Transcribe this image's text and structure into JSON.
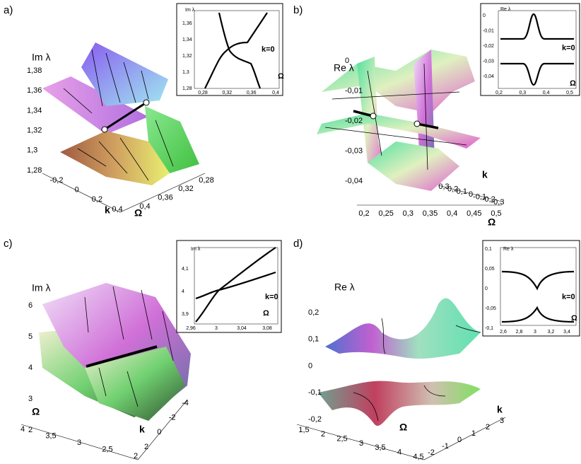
{
  "panels": [
    {
      "label": "a)",
      "main": {
        "zlabel": "Im λ",
        "zticks": [
          "1,38",
          "1,36",
          "1,34",
          "1,32",
          "1,3",
          "1,28"
        ],
        "klabel": "k",
        "kticks": [
          "-0,2",
          "0",
          "0,2",
          "0,4"
        ],
        "wlabel": "Ω",
        "wticks": [
          "0,4",
          "0,36",
          "0,32",
          "0,28"
        ]
      },
      "inset": {
        "ylabel": "Im λ",
        "yticks": [
          "1,36",
          "1,34",
          "1,32",
          "1,3",
          "1,28"
        ],
        "xticks": [
          "0,28",
          "0,32",
          "0,36",
          "0,4"
        ],
        "xlabel": "Ω",
        "note": "k=0"
      }
    },
    {
      "label": "b)",
      "main": {
        "zlabel": "Re λ",
        "zticks": [
          "0",
          "-0,01",
          "-0,02",
          "-0,03",
          "-0,04"
        ],
        "klabel": "k",
        "kticks": [
          "0,3",
          "0,2",
          "0,1",
          "0",
          "-0,1",
          "-0,2",
          "-0,3"
        ],
        "wlabel": "Ω",
        "wticks": [
          "0,2",
          "0,25",
          "0,3",
          "0,35",
          "0,4",
          "0,45",
          "0,5"
        ]
      },
      "inset": {
        "ylabel": "Re λ",
        "yticks": [
          "0",
          "-0,01",
          "-0,02",
          "-0,03",
          "-0,04"
        ],
        "xticks": [
          "0,2",
          "0,3",
          "0,4",
          "0,5"
        ],
        "xlabel": "Ω",
        "note": "k=0"
      }
    },
    {
      "label": "c)",
      "main": {
        "zlabel": "Im λ",
        "zticks": [
          "6",
          "5",
          "4",
          "3",
          "2"
        ],
        "klabel": "k",
        "kticks": [
          "2",
          "0",
          "-2",
          "-4"
        ],
        "wlabel": "Ω",
        "wticks": [
          "4",
          "3,5",
          "3",
          "2,5",
          "2"
        ]
      },
      "inset": {
        "ylabel": "Im λ",
        "yticks": [
          "4,1",
          "4",
          "3,9"
        ],
        "xticks": [
          "2,96",
          "3",
          "3,04",
          "3,08"
        ],
        "xlabel": "Ω",
        "note": "k=0"
      }
    },
    {
      "label": "d)",
      "main": {
        "zlabel": "Re λ",
        "zticks": [
          "0,2",
          "0,1",
          "0",
          "-0,1",
          "-0,2"
        ],
        "klabel": "k",
        "kticks": [
          "-2",
          "-1",
          "0",
          "1",
          "2",
          "3"
        ],
        "wlabel": "Ω",
        "wticks": [
          "1,5",
          "2",
          "2,5",
          "3",
          "3,5",
          "4",
          "4,5"
        ]
      },
      "inset": {
        "ylabel": "Re λ",
        "yticks": [
          "0,1",
          "0,05",
          "0",
          "-0,05",
          "-0,1"
        ],
        "xticks": [
          "2,6",
          "2,8",
          "3",
          "3,2",
          "3,4"
        ],
        "xlabel": "Ω",
        "note": "k=0"
      }
    }
  ]
}
